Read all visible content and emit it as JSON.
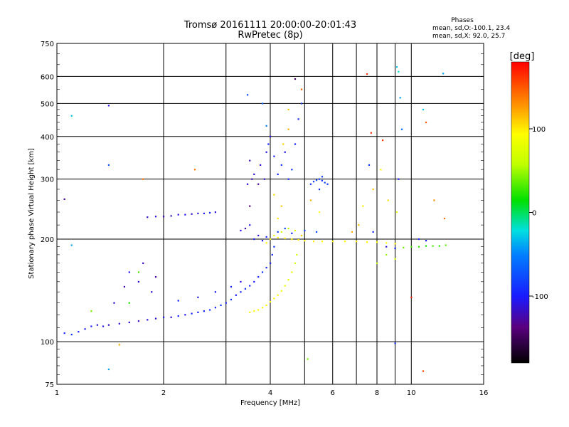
{
  "title_line1": "Tromsø 20161111 20:00:00-20:01:43",
  "title_line2": "RwPretec (8p)",
  "stats": {
    "heading": "Phases",
    "line_o": "mean, sd,O:-100.1, 23.4",
    "line_x": "mean, sd,X:  92.0, 25.7"
  },
  "colorbar": {
    "unit": "[deg]",
    "ticks": [
      {
        "value": 100,
        "label": "100"
      },
      {
        "value": 0,
        "label": "0"
      },
      {
        "value": -100,
        "label": "-100"
      }
    ],
    "range": [
      -180,
      180
    ]
  },
  "chart_data": {
    "type": "scatter",
    "xlabel": "Frequency [MHz]",
    "ylabel": "Stationary phase Virtual Height [km]",
    "xscale": "log",
    "yscale": "log",
    "xlim": [
      1,
      16
    ],
    "ylim": [
      75,
      750
    ],
    "xticks": [
      {
        "value": 1,
        "label": "1"
      },
      {
        "value": 2,
        "label": "2"
      },
      {
        "value": 4,
        "label": "4"
      },
      {
        "value": 6,
        "label": "6"
      },
      {
        "value": 8,
        "label": "8"
      },
      {
        "value": 10,
        "label": "10"
      },
      {
        "value": 16,
        "label": "16"
      }
    ],
    "xminor": [
      3,
      5,
      7,
      9
    ],
    "yticks": [
      {
        "value": 75,
        "label": "75"
      },
      {
        "value": 100,
        "label": "100"
      },
      {
        "value": 200,
        "label": "200"
      },
      {
        "value": 300,
        "label": "300"
      },
      {
        "value": 400,
        "label": "400"
      },
      {
        "value": 500,
        "label": "500"
      },
      {
        "value": 600,
        "label": "600"
      },
      {
        "value": 750,
        "label": "750"
      }
    ],
    "grid": true,
    "phase_colormap": "rainbow",
    "series": [
      {
        "points": [
          [
            1.05,
            106,
            -95
          ],
          [
            1.1,
            105,
            -90
          ],
          [
            1.15,
            107,
            -100
          ],
          [
            1.2,
            109,
            -105
          ],
          [
            1.25,
            111,
            -100
          ],
          [
            1.3,
            112,
            -110
          ],
          [
            1.35,
            111,
            -105
          ],
          [
            1.4,
            112,
            -115
          ],
          [
            1.5,
            113,
            -110
          ],
          [
            1.6,
            114,
            -115
          ],
          [
            1.7,
            115,
            -120
          ],
          [
            1.8,
            116,
            -110
          ],
          [
            1.9,
            117,
            -115
          ],
          [
            2.0,
            118,
            -105
          ],
          [
            2.1,
            118,
            -110
          ],
          [
            2.2,
            119,
            -100
          ],
          [
            2.3,
            120,
            -105
          ],
          [
            2.4,
            121,
            -95
          ],
          [
            2.5,
            122,
            -100
          ],
          [
            2.6,
            123,
            -95
          ],
          [
            2.7,
            124,
            -90
          ],
          [
            2.8,
            126,
            -95
          ],
          [
            2.9,
            128,
            -90
          ],
          [
            3.0,
            130,
            -95
          ],
          [
            3.1,
            133,
            -90
          ],
          [
            3.2,
            137,
            -100
          ],
          [
            3.3,
            140,
            -95
          ],
          [
            3.4,
            143,
            -90
          ],
          [
            3.5,
            146,
            -95
          ],
          [
            3.6,
            150,
            -100
          ],
          [
            3.7,
            155,
            -95
          ],
          [
            3.8,
            160,
            -90
          ],
          [
            3.9,
            165,
            -95
          ],
          [
            4.0,
            170,
            -100
          ],
          [
            4.05,
            180,
            -95
          ],
          [
            4.1,
            190,
            -90
          ],
          [
            1.45,
            130,
            -110
          ],
          [
            1.55,
            145,
            -120
          ],
          [
            1.6,
            160,
            -105
          ],
          [
            1.7,
            150,
            -115
          ],
          [
            1.75,
            170,
            -120
          ],
          [
            1.85,
            140,
            -110
          ],
          [
            1.9,
            155,
            -125
          ],
          [
            2.2,
            132,
            -100
          ],
          [
            2.5,
            135,
            -110
          ],
          [
            2.8,
            140,
            -100
          ],
          [
            3.1,
            145,
            -95
          ],
          [
            3.3,
            150,
            -110
          ],
          [
            1.8,
            232,
            -115
          ],
          [
            1.9,
            233,
            -110
          ],
          [
            2.0,
            233,
            -120
          ],
          [
            2.1,
            234,
            -115
          ],
          [
            2.2,
            236,
            -110
          ],
          [
            2.3,
            236,
            -105
          ],
          [
            2.4,
            237,
            -115
          ],
          [
            2.5,
            238,
            -110
          ],
          [
            2.6,
            238,
            -105
          ],
          [
            2.7,
            239,
            -100
          ],
          [
            2.8,
            240,
            -110
          ],
          [
            3.3,
            212,
            -110
          ],
          [
            3.4,
            215,
            -120
          ],
          [
            3.5,
            220,
            -105
          ],
          [
            3.45,
            290,
            -115
          ],
          [
            3.55,
            300,
            -120
          ],
          [
            3.6,
            310,
            -110
          ],
          [
            3.7,
            290,
            -125
          ],
          [
            3.5,
            340,
            -120
          ],
          [
            3.75,
            330,
            -110
          ],
          [
            3.85,
            300,
            -115
          ],
          [
            3.9,
            360,
            -105
          ],
          [
            3.95,
            380,
            -100
          ],
          [
            4.0,
            400,
            -110
          ],
          [
            4.1,
            350,
            -100
          ],
          [
            4.2,
            310,
            -95
          ],
          [
            4.3,
            330,
            -90
          ],
          [
            4.4,
            360,
            -100
          ],
          [
            4.5,
            300,
            -95
          ],
          [
            4.6,
            320,
            -90
          ],
          [
            4.7,
            380,
            -100
          ],
          [
            4.8,
            450,
            -95
          ],
          [
            4.9,
            500,
            -90
          ],
          [
            5.2,
            290,
            -90
          ],
          [
            5.3,
            295,
            -85
          ],
          [
            5.4,
            298,
            -80
          ],
          [
            5.5,
            300,
            -85
          ],
          [
            5.6,
            297,
            -90
          ],
          [
            5.7,
            293,
            -80
          ],
          [
            5.8,
            290,
            -85
          ],
          [
            5.5,
            280,
            -90
          ],
          [
            5.6,
            305,
            -85
          ],
          [
            3.6,
            200,
            -100
          ],
          [
            3.7,
            205,
            -110
          ],
          [
            3.8,
            198,
            -105
          ],
          [
            3.9,
            203,
            -95
          ],
          [
            4.2,
            210,
            -85
          ],
          [
            4.4,
            215,
            -80
          ],
          [
            4.6,
            208,
            -90
          ],
          [
            5.0,
            212,
            -85
          ],
          [
            5.4,
            210,
            -80
          ],
          [
            7.8,
            210,
            -95
          ],
          [
            8.5,
            190,
            -110
          ],
          [
            9.0,
            188,
            -95
          ],
          [
            9.2,
            300,
            -100
          ],
          [
            10.5,
            200,
            -90
          ],
          [
            11.0,
            198,
            -100
          ],
          [
            7.6,
            330,
            -85
          ]
        ]
      },
      {
        "points": [
          [
            3.5,
            122,
            85
          ],
          [
            3.6,
            123,
            90
          ],
          [
            3.7,
            124,
            95
          ],
          [
            3.8,
            126,
            90
          ],
          [
            3.9,
            128,
            85
          ],
          [
            4.0,
            131,
            90
          ],
          [
            4.1,
            134,
            95
          ],
          [
            4.2,
            137,
            90
          ],
          [
            4.3,
            141,
            85
          ],
          [
            4.4,
            146,
            80
          ],
          [
            4.5,
            152,
            85
          ],
          [
            4.6,
            160,
            80
          ],
          [
            4.7,
            170,
            75
          ],
          [
            4.75,
            180,
            70
          ],
          [
            4.0,
            200,
            90
          ],
          [
            4.2,
            202,
            95
          ],
          [
            4.4,
            201,
            100
          ],
          [
            4.6,
            200,
            95
          ],
          [
            4.8,
            199,
            100
          ],
          [
            5.0,
            198,
            95
          ],
          [
            5.3,
            197,
            100
          ],
          [
            5.6,
            197,
            95
          ],
          [
            6.0,
            197,
            100
          ],
          [
            6.5,
            197,
            95
          ],
          [
            7.0,
            197,
            100
          ],
          [
            7.5,
            196,
            95
          ],
          [
            8.0,
            196,
            100
          ],
          [
            8.5,
            195,
            95
          ],
          [
            9.0,
            194,
            100
          ],
          [
            4.1,
            205,
            80
          ],
          [
            4.3,
            210,
            70
          ],
          [
            4.5,
            215,
            60
          ],
          [
            4.7,
            212,
            75
          ],
          [
            3.9,
            195,
            100
          ],
          [
            4.9,
            205,
            110
          ],
          [
            10.0,
            190,
            30
          ],
          [
            10.5,
            190,
            25
          ],
          [
            11.0,
            191,
            20
          ],
          [
            11.5,
            191,
            30
          ],
          [
            12.0,
            191,
            25
          ],
          [
            12.5,
            192,
            35
          ],
          [
            9.5,
            189,
            40
          ],
          [
            7.3,
            250,
            100
          ],
          [
            7.8,
            280,
            110
          ],
          [
            8.2,
            320,
            95
          ],
          [
            8.6,
            260,
            105
          ],
          [
            9.1,
            240,
            90
          ],
          [
            7.1,
            220,
            115
          ],
          [
            6.8,
            210,
            120
          ],
          [
            4.35,
            380,
            110
          ],
          [
            4.5,
            420,
            120
          ],
          [
            4.1,
            270,
            105
          ],
          [
            4.3,
            250,
            110
          ],
          [
            4.2,
            230,
            100
          ],
          [
            5.5,
            240,
            95
          ],
          [
            5.2,
            260,
            120
          ],
          [
            1.25,
            123,
            40
          ],
          [
            1.6,
            130,
            20
          ],
          [
            1.7,
            160,
            30
          ],
          [
            8.0,
            170,
            60
          ],
          [
            9.0,
            175,
            70
          ],
          [
            8.5,
            180,
            50
          ]
        ]
      },
      {
        "points": [
          [
            1.05,
            262,
            -130
          ],
          [
            1.1,
            460,
            -30
          ],
          [
            1.1,
            192,
            -40
          ],
          [
            1.4,
            493,
            -110
          ],
          [
            1.4,
            330,
            -70
          ],
          [
            1.4,
            83,
            -40
          ],
          [
            1.5,
            98,
            120
          ],
          [
            1.75,
            300,
            140
          ],
          [
            2.45,
            320,
            140
          ],
          [
            3.45,
            530,
            -80
          ],
          [
            3.5,
            250,
            -140
          ],
          [
            3.8,
            500,
            -60
          ],
          [
            3.9,
            430,
            -50
          ],
          [
            4.5,
            480,
            110
          ],
          [
            4.7,
            590,
            -150
          ],
          [
            4.9,
            550,
            150
          ],
          [
            5.1,
            89,
            40
          ],
          [
            7.5,
            610,
            160
          ],
          [
            7.7,
            410,
            165
          ],
          [
            8.3,
            390,
            165
          ],
          [
            9.1,
            640,
            -30
          ],
          [
            9.2,
            620,
            -20
          ],
          [
            9.3,
            520,
            -40
          ],
          [
            9.4,
            420,
            -60
          ],
          [
            10.0,
            135,
            170
          ],
          [
            9.0,
            99,
            -90
          ],
          [
            10.8,
            480,
            -30
          ],
          [
            11.0,
            440,
            150
          ],
          [
            10.8,
            82,
            160
          ],
          [
            12.3,
            612,
            -40
          ],
          [
            11.6,
            260,
            130
          ],
          [
            12.4,
            230,
            140
          ]
        ]
      }
    ]
  }
}
